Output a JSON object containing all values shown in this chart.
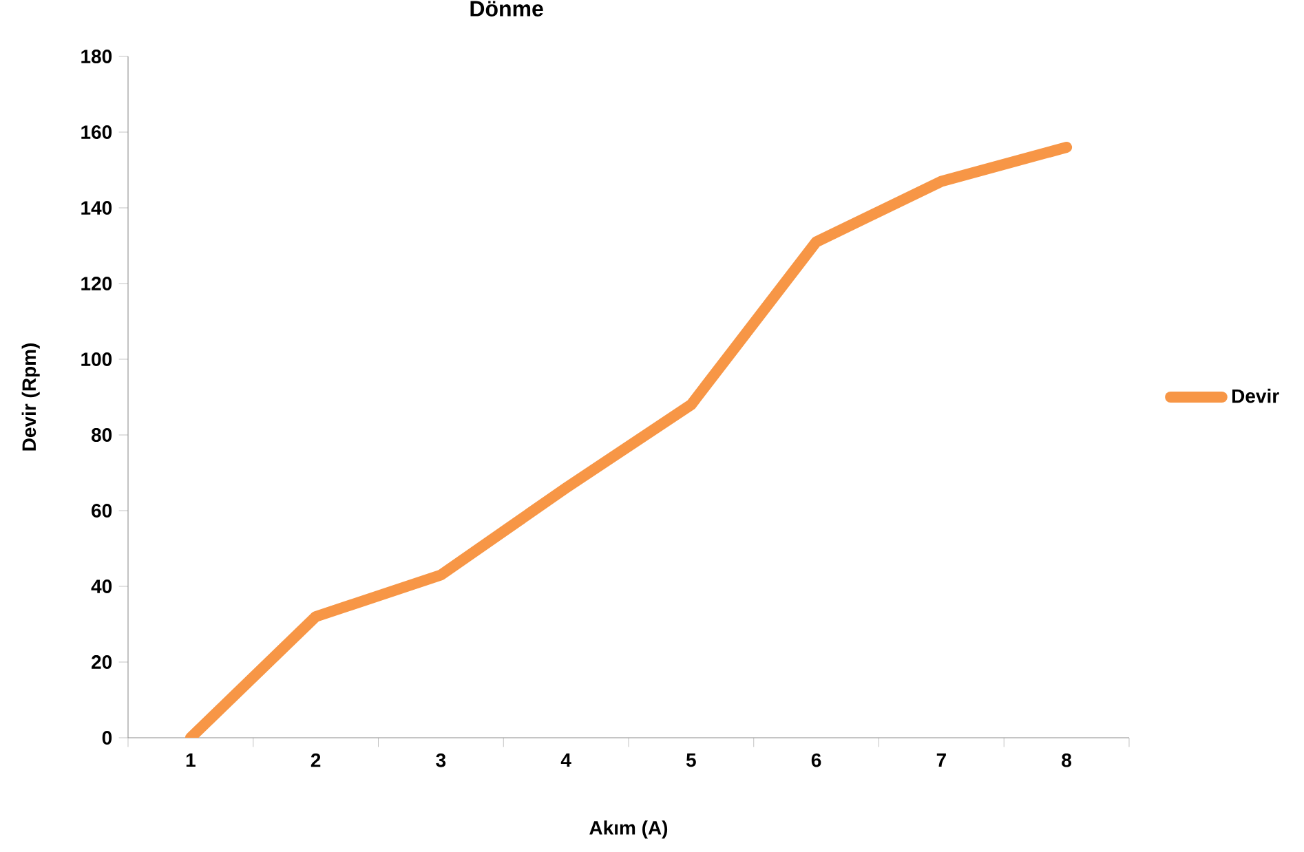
{
  "chart_data": {
    "type": "line",
    "title": "Dönme",
    "xlabel": "Akım (A)",
    "ylabel": "Devir (Rpm)",
    "categories": [
      "1",
      "2",
      "3",
      "4",
      "5",
      "6",
      "7",
      "8"
    ],
    "series": [
      {
        "name": "Devir",
        "color": "#f79646",
        "values": [
          0,
          32,
          43,
          66,
          88,
          131,
          147,
          156
        ]
      }
    ],
    "ylim": [
      0,
      180
    ],
    "yticks": [
      0,
      20,
      40,
      60,
      80,
      100,
      120,
      140,
      160,
      180
    ],
    "legend": "right",
    "grid": false,
    "marker": "none",
    "line_style": "solid"
  }
}
